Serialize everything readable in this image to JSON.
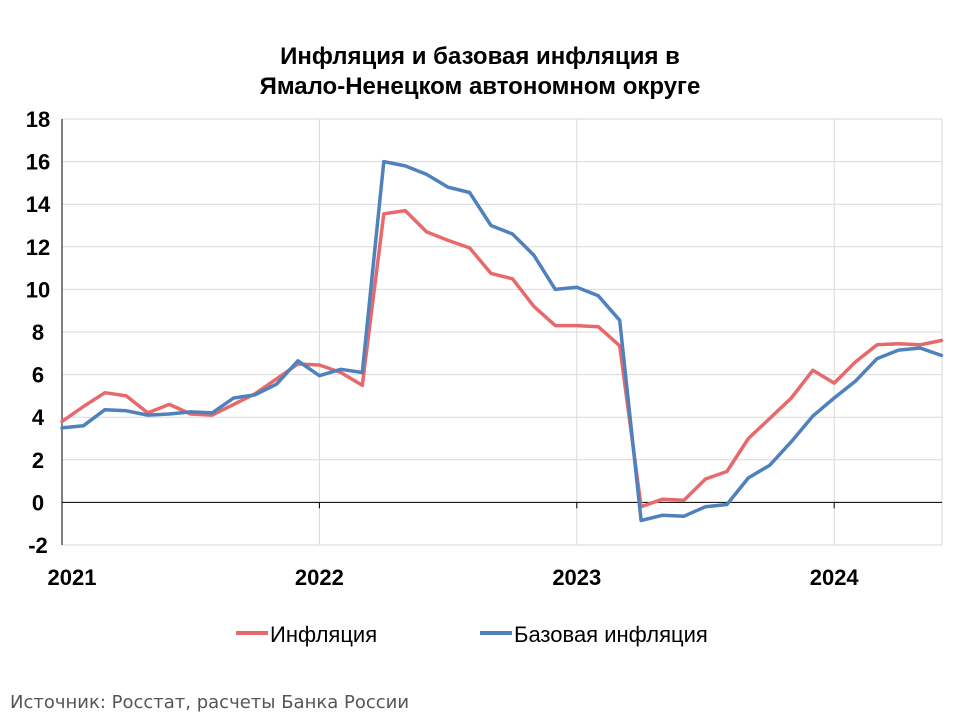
{
  "title_line1": "Инфляция и базовая инфляция в",
  "title_line2": "Ямало-Ненецком автономном округе",
  "source": "Источник: Росстат, расчеты Банка России",
  "colors": {
    "inflation": "#e8696b",
    "core": "#4f81bd",
    "grid": "#d9d9d9",
    "axis": "#000000"
  },
  "chart_data": {
    "type": "line",
    "title": "Инфляция и базовая инфляция в Ямало-Ненецком автономном округе",
    "ylim": [
      -2,
      18
    ],
    "yticks": [
      -2,
      0,
      2,
      4,
      6,
      8,
      10,
      12,
      14,
      16,
      18
    ],
    "x_year_labels": [
      "2021",
      "2022",
      "2023",
      "2024"
    ],
    "x_start": "2021-01",
    "grid": true,
    "legend_position": "bottom",
    "series": [
      {
        "name": "Инфляция",
        "values": [
          3.8,
          4.5,
          5.15,
          5.0,
          4.2,
          4.6,
          4.15,
          4.1,
          4.6,
          5.1,
          5.8,
          6.5,
          6.45,
          6.1,
          5.5,
          13.55,
          13.7,
          12.7,
          12.3,
          11.95,
          10.75,
          10.5,
          9.2,
          8.3,
          8.3,
          8.25,
          7.35,
          -0.2,
          0.15,
          0.1,
          1.1,
          1.45,
          3.0,
          3.95,
          4.9,
          6.2,
          5.6,
          6.6,
          7.4,
          7.45,
          7.4,
          7.6
        ]
      },
      {
        "name": "Базовая инфляция",
        "values": [
          3.5,
          3.6,
          4.35,
          4.3,
          4.1,
          4.15,
          4.25,
          4.2,
          4.9,
          5.05,
          5.55,
          6.65,
          5.95,
          6.25,
          6.1,
          16.0,
          15.8,
          15.4,
          14.8,
          14.55,
          13.0,
          12.6,
          11.6,
          10.0,
          10.1,
          9.7,
          8.55,
          -0.85,
          -0.6,
          -0.65,
          -0.2,
          -0.1,
          1.15,
          1.75,
          2.85,
          4.05,
          4.9,
          5.7,
          6.75,
          7.15,
          7.25,
          6.9
        ]
      }
    ]
  }
}
